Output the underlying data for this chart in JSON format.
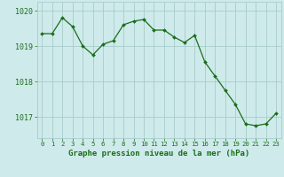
{
  "x": [
    0,
    1,
    2,
    3,
    4,
    5,
    6,
    7,
    8,
    9,
    10,
    11,
    12,
    13,
    14,
    15,
    16,
    17,
    18,
    19,
    20,
    21,
    22,
    23
  ],
  "y": [
    1019.35,
    1019.35,
    1019.8,
    1019.55,
    1019.0,
    1018.75,
    1019.05,
    1019.15,
    1019.6,
    1019.7,
    1019.75,
    1019.45,
    1019.45,
    1019.25,
    1019.1,
    1019.3,
    1018.55,
    1018.15,
    1017.75,
    1017.35,
    1016.8,
    1016.75,
    1016.8,
    1017.1
  ],
  "line_color": "#1a6e1a",
  "marker_color": "#1a6e1a",
  "bg_color": "#ceeaea",
  "grid_color": "#a8cccc",
  "axis_color": "#1a6e1a",
  "tick_color": "#1a6e1a",
  "xlabel": "Graphe pression niveau de la mer (hPa)",
  "xlabel_fontsize": 6.5,
  "yticks": [
    1017,
    1018,
    1019,
    1020
  ],
  "xticks": [
    0,
    1,
    2,
    3,
    4,
    5,
    6,
    7,
    8,
    9,
    10,
    11,
    12,
    13,
    14,
    15,
    16,
    17,
    18,
    19,
    20,
    21,
    22,
    23
  ],
  "ylim": [
    1016.4,
    1020.25
  ],
  "xlim": [
    -0.5,
    23.5
  ],
  "xtick_fontsize": 5.2,
  "ytick_fontsize": 6.0
}
